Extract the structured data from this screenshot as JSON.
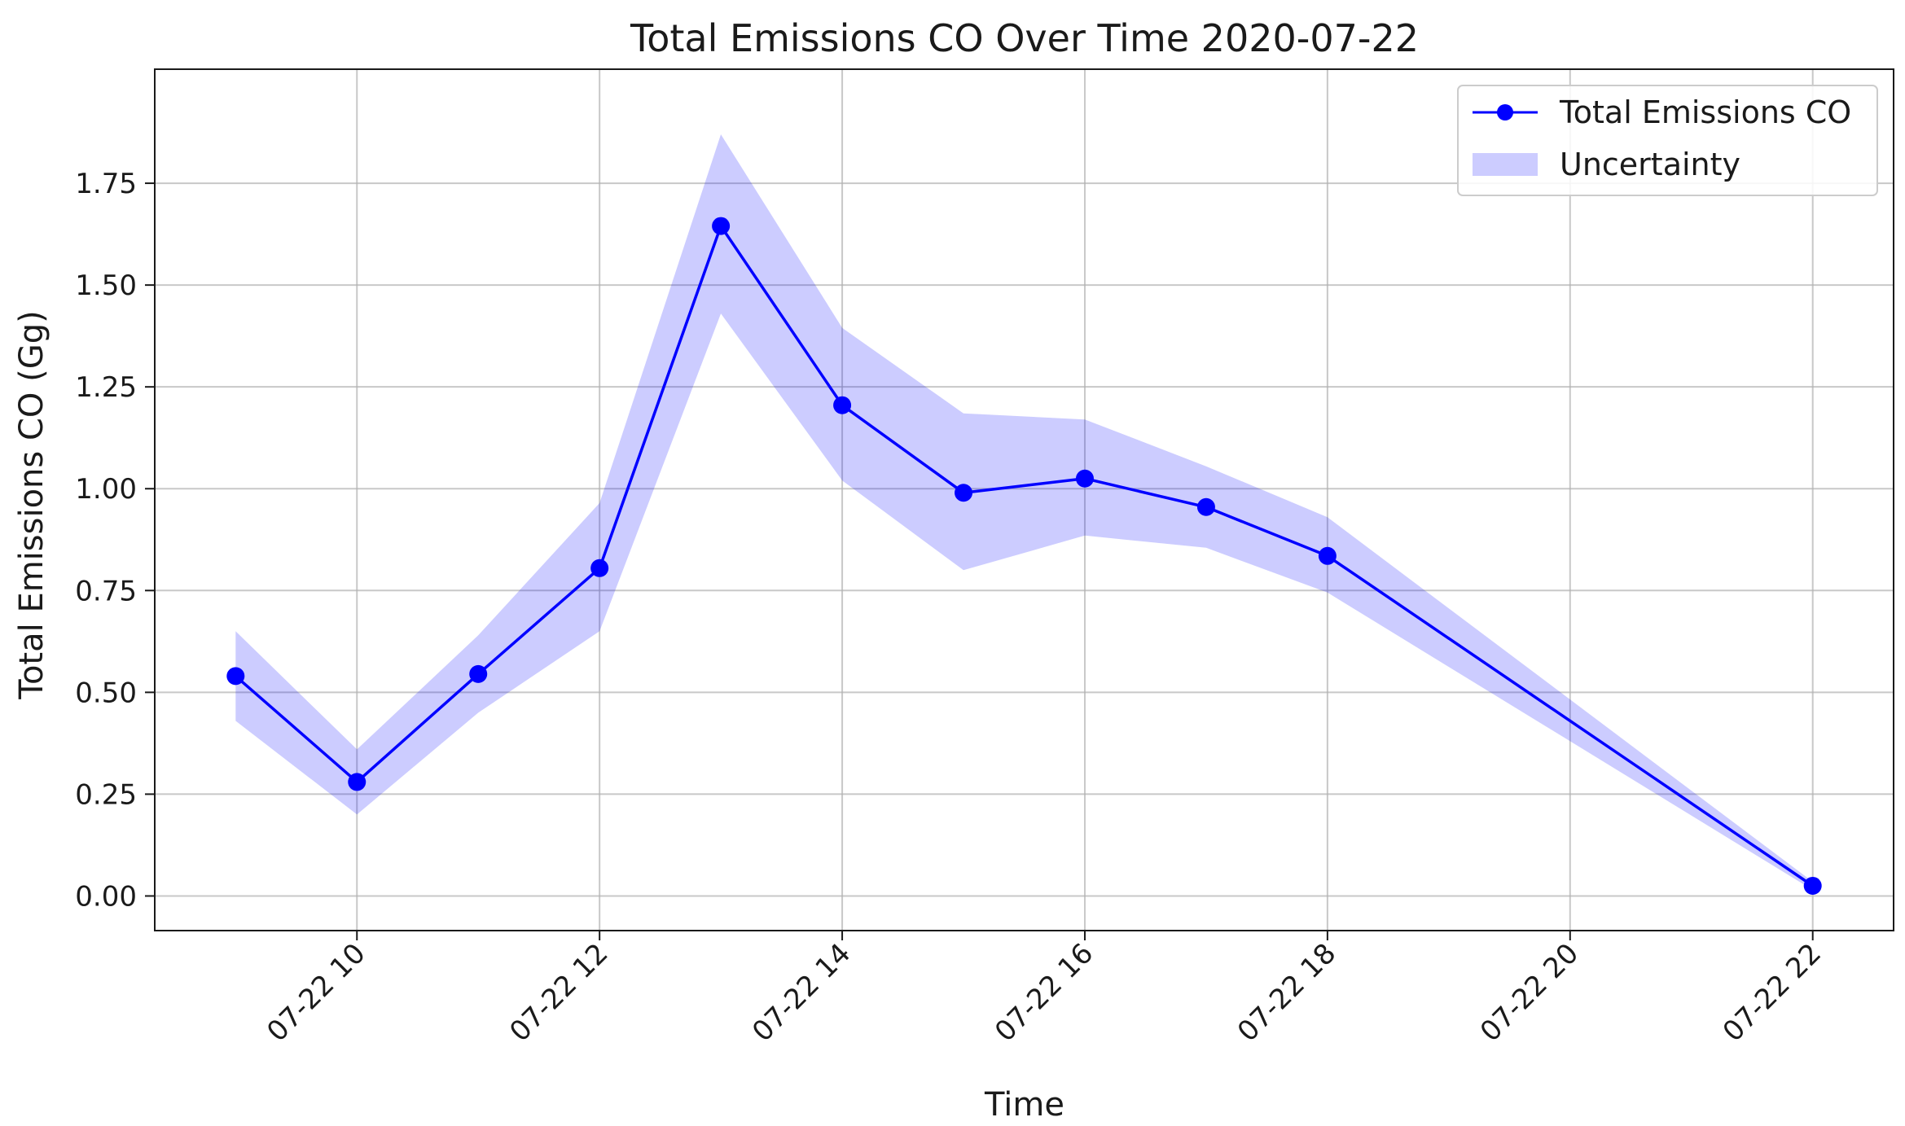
{
  "chart_data": {
    "type": "line",
    "title": "Total Emissions CO Over Time 2020-07-22",
    "xlabel": "Time",
    "ylabel": "Total Emissions CO (Gg)",
    "x": [
      "2020-07-22 09:00",
      "2020-07-22 10:00",
      "2020-07-22 11:00",
      "2020-07-22 12:00",
      "2020-07-22 13:00",
      "2020-07-22 14:00",
      "2020-07-22 15:00",
      "2020-07-22 16:00",
      "2020-07-22 17:00",
      "2020-07-22 18:00",
      "2020-07-22 22:00"
    ],
    "series": [
      {
        "name": "Total Emissions CO",
        "color": "#0000ff",
        "marker": "circle",
        "values": [
          0.54,
          0.28,
          0.545,
          0.805,
          1.645,
          1.205,
          0.99,
          1.025,
          0.955,
          0.835,
          0.025
        ]
      }
    ],
    "uncertainty": {
      "name": "Uncertainty",
      "color": "#0000ff",
      "lower": [
        0.43,
        0.2,
        0.45,
        0.65,
        1.43,
        1.02,
        0.8,
        0.885,
        0.855,
        0.745,
        0.015
      ],
      "upper": [
        0.65,
        0.36,
        0.64,
        0.965,
        1.87,
        1.395,
        1.185,
        1.17,
        1.055,
        0.93,
        0.035
      ]
    },
    "x_range": [
      "2020-07-22 08:20",
      "2020-07-22 22:40"
    ],
    "x_ticks": [
      "2020-07-22 10:00",
      "2020-07-22 12:00",
      "2020-07-22 14:00",
      "2020-07-22 16:00",
      "2020-07-22 18:00",
      "2020-07-22 20:00",
      "2020-07-22 22:00"
    ],
    "x_tick_labels": [
      "07-22 10",
      "07-22 12",
      "07-22 14",
      "07-22 16",
      "07-22 18",
      "07-22 20",
      "07-22 22"
    ],
    "ylim": [
      -0.085,
      2.03
    ],
    "y_ticks": [
      0.0,
      0.25,
      0.5,
      0.75,
      1.0,
      1.25,
      1.5,
      1.75
    ],
    "y_tick_labels": [
      "0.00",
      "0.25",
      "0.50",
      "0.75",
      "1.00",
      "1.25",
      "1.50",
      "1.75"
    ],
    "grid": true,
    "legend": "top-right"
  }
}
